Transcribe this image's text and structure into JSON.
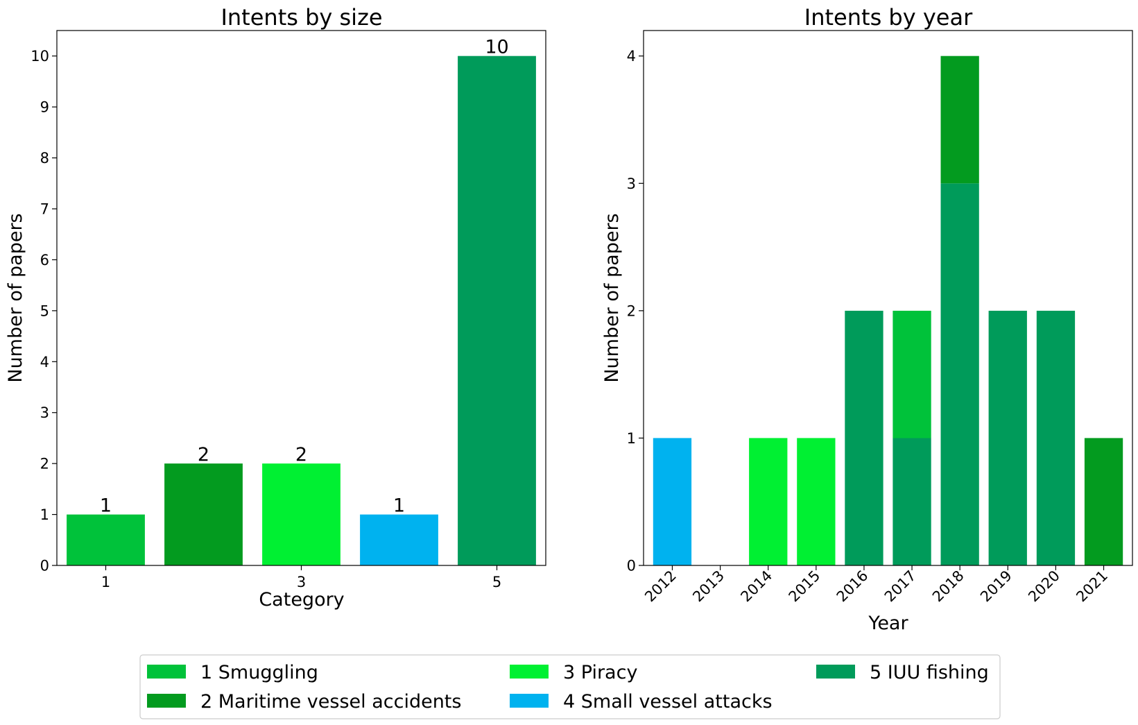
{
  "colors": {
    "1": "#00c23a",
    "2": "#039b1f",
    "3": "#00f032",
    "4": "#00b2ef",
    "5": "#009b5a"
  },
  "chart_data": [
    {
      "type": "bar",
      "title": "Intents by size",
      "xlabel": "Category",
      "ylabel": "Number of papers",
      "categories": [
        1,
        2,
        3,
        4,
        5
      ],
      "values": [
        1,
        2,
        2,
        1,
        10
      ],
      "data_labels": [
        "1",
        "2",
        "2",
        "1",
        "10"
      ],
      "bar_colors": [
        "1",
        "2",
        "3",
        "4",
        "5"
      ],
      "xticks": [
        1,
        3,
        5
      ],
      "xlim": [
        0.5,
        5.5
      ],
      "yticks": [
        0,
        1,
        2,
        3,
        4,
        5,
        6,
        7,
        8,
        9,
        10
      ],
      "ylim": [
        0,
        10.5
      ],
      "grid": false
    },
    {
      "type": "bar",
      "stacked": true,
      "title": "Intents by year",
      "xlabel": "Year",
      "ylabel": "Number of papers",
      "categories": [
        "2012",
        "2013",
        "2014",
        "2015",
        "2016",
        "2017",
        "2018",
        "2019",
        "2020",
        "2021"
      ],
      "series": [
        {
          "color": "5",
          "values": [
            0,
            0,
            0,
            0,
            2,
            1,
            3,
            2,
            2,
            0
          ]
        },
        {
          "color": "1",
          "values": [
            0,
            0,
            0,
            0,
            0,
            1,
            0,
            0,
            0,
            0
          ]
        },
        {
          "color": "2",
          "values": [
            0,
            0,
            0,
            0,
            0,
            0,
            1,
            0,
            0,
            1
          ]
        },
        {
          "color": "3",
          "values": [
            0,
            0,
            1,
            1,
            0,
            0,
            0,
            0,
            0,
            0
          ]
        },
        {
          "color": "4",
          "values": [
            1,
            0,
            0,
            0,
            0,
            0,
            0,
            0,
            0,
            0
          ]
        }
      ],
      "yticks": [
        0,
        1,
        2,
        3,
        4
      ],
      "ylim": [
        0,
        4.2
      ],
      "tick_rotation": -45,
      "grid": false
    }
  ],
  "legend": {
    "placement": "bottom-center",
    "columns": 3,
    "entries": [
      {
        "label": "1 Smuggling",
        "color": "1"
      },
      {
        "label": "2 Maritime vessel accidents",
        "color": "2"
      },
      {
        "label": "3 Piracy",
        "color": "3"
      },
      {
        "label": "4 Small vessel attacks",
        "color": "4"
      },
      {
        "label": "5 IUU fishing",
        "color": "5"
      }
    ]
  }
}
